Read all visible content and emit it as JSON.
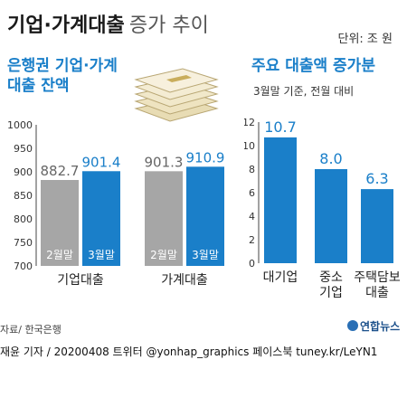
{
  "header": {
    "title_strong": "기업·가계대출",
    "title_light": "증가 추이",
    "unit": "단위: 조 원"
  },
  "left_panel": {
    "title_line1": "은행권 기업·가계",
    "title_line2": "대출 잔액"
  },
  "right_panel": {
    "title": "주요 대출액 증가분",
    "subtitle": "3월말 기준, 전월 대비"
  },
  "footer": {
    "source": "자료/ 한국은행",
    "logo_text": "연합뉴스",
    "credit": "재윤 기자 / 20200408   트위터 @yonhap_graphics  페이스북 tuney.kr/LeYN1"
  },
  "colors": {
    "blue": "#1a7fc9",
    "gray": "#a6a6a6",
    "axis": "#444444"
  },
  "chart_data": [
    {
      "type": "bar",
      "title": "은행권 기업·가계 대출 잔액",
      "categories": [
        "기업대출",
        "가계대출"
      ],
      "series": [
        {
          "name": "2월말",
          "values": [
            882.7,
            901.3
          ]
        },
        {
          "name": "3월말",
          "values": [
            901.4,
            910.9
          ]
        }
      ],
      "yticks": [
        700,
        750,
        800,
        850,
        900,
        950,
        1000
      ],
      "ylim": [
        700,
        1000
      ],
      "unit": "조 원"
    },
    {
      "type": "bar",
      "title": "주요 대출액 증가분",
      "subtitle": "3월말 기준, 전월 대비",
      "categories": [
        "대기업",
        "중소 기업",
        "주택담보 대출"
      ],
      "values": [
        10.7,
        8.0,
        6.3
      ],
      "yticks": [
        0,
        2,
        4,
        6,
        8,
        10,
        12
      ],
      "ylim": [
        0,
        12
      ],
      "unit": "조 원"
    }
  ]
}
